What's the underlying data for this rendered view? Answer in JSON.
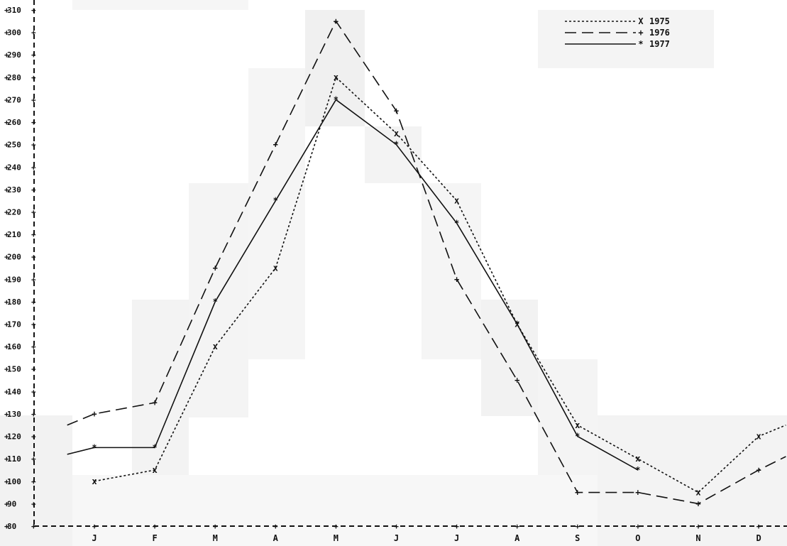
{
  "chart_data": {
    "type": "line",
    "categories": [
      "J",
      "F",
      "M",
      "A",
      "M",
      "J",
      "J",
      "A",
      "S",
      "O",
      "N",
      "D"
    ],
    "ylim": [
      80,
      310
    ],
    "yticks": [
      80,
      90,
      100,
      110,
      120,
      130,
      140,
      150,
      160,
      170,
      180,
      190,
      200,
      210,
      220,
      230,
      240,
      250,
      260,
      270,
      280,
      290,
      300,
      310
    ],
    "grid": false,
    "legend_position": "top-right",
    "series": [
      {
        "name": "1975",
        "marker": "x",
        "dash": "dotted",
        "color": "#111111",
        "values": [
          100,
          105,
          160,
          195,
          280,
          255,
          225,
          170,
          125,
          110,
          95,
          120
        ],
        "lead_in": null,
        "trail_out": 125
      },
      {
        "name": "1976",
        "marker": "+",
        "dash": "long-dash",
        "color": "#111111",
        "values": [
          130,
          135,
          195,
          250,
          305,
          265,
          190,
          145,
          95,
          95,
          90,
          105
        ],
        "lead_in": 125,
        "trail_out": 111
      },
      {
        "name": "1977",
        "marker": "*",
        "dash": "solid",
        "color": "#111111",
        "values": [
          115,
          115,
          180,
          225,
          270,
          250,
          215,
          170,
          120,
          105,
          null,
          null
        ],
        "lead_in": 112,
        "trail_out": null
      }
    ]
  }
}
